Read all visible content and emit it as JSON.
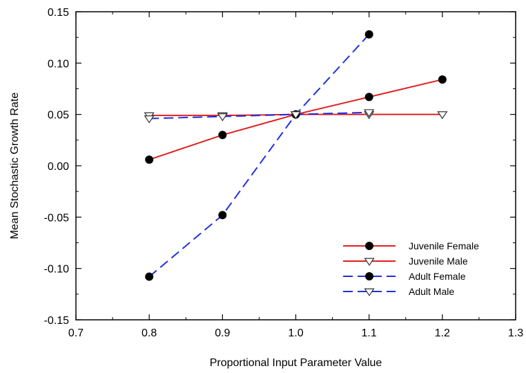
{
  "chart_data": {
    "type": "line",
    "xlabel": "Proportional Input Parameter Value",
    "ylabel": "Mean Stochastic Growth Rate",
    "xlim": [
      0.7,
      1.3
    ],
    "ylim": [
      -0.15,
      0.15
    ],
    "x_ticks": [
      0.7,
      0.8,
      0.9,
      1.0,
      1.1,
      1.2,
      1.3
    ],
    "x_tick_labels": [
      "0.7",
      "0.8",
      "0.9",
      "1.0",
      "1.1",
      "1.2",
      "1.3"
    ],
    "y_ticks": [
      -0.15,
      -0.1,
      -0.05,
      0.0,
      0.05,
      0.1,
      0.15
    ],
    "y_tick_labels": [
      "-0.15",
      "-0.10",
      "-0.05",
      "0.00",
      "0.05",
      "0.10",
      "0.15"
    ],
    "grid": false,
    "legend_position": "bottom-right",
    "series": [
      {
        "name": "Juvenile Female",
        "color": "#e02020",
        "dash": "solid",
        "marker": "filled-circle",
        "x": [
          0.8,
          0.9,
          1.0,
          1.1,
          1.2
        ],
        "y": [
          0.006,
          0.03,
          0.05,
          0.067,
          0.084
        ]
      },
      {
        "name": "Juvenile Male",
        "color": "#e02020",
        "dash": "solid",
        "marker": "open-triangle-down",
        "x": [
          0.8,
          0.9,
          1.0,
          1.1,
          1.2
        ],
        "y": [
          0.049,
          0.049,
          0.05,
          0.05,
          0.05
        ]
      },
      {
        "name": "Adult Female",
        "color": "#1f2fe0",
        "dash": "dashed",
        "marker": "filled-circle",
        "x": [
          0.8,
          0.9,
          1.0,
          1.1
        ],
        "y": [
          -0.108,
          -0.048,
          0.05,
          0.128
        ]
      },
      {
        "name": "Adult Male",
        "color": "#1f2fe0",
        "dash": "dashed",
        "marker": "open-triangle-down",
        "x": [
          0.8,
          0.9,
          1.0,
          1.1
        ],
        "y": [
          0.046,
          0.048,
          0.05,
          0.052
        ]
      }
    ]
  }
}
